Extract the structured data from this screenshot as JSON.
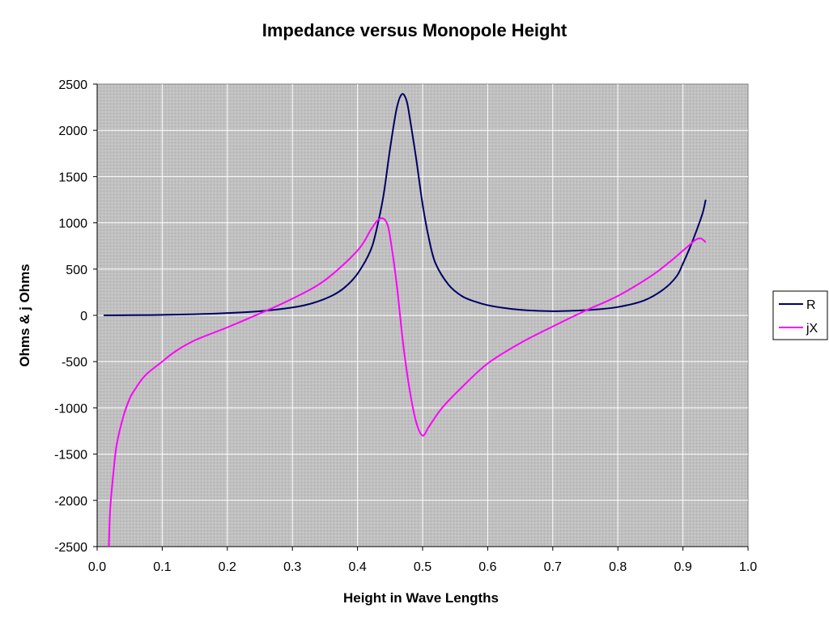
{
  "chart_data": {
    "type": "line",
    "title": "Impedance versus Monopole Height",
    "xlabel": "Height in Wave Lengths",
    "ylabel": "Ohms & j Ohms",
    "xlim": [
      0.0,
      1.0
    ],
    "ylim": [
      -2500,
      2500
    ],
    "xticks": [
      "0.0",
      "0.1",
      "0.2",
      "0.3",
      "0.4",
      "0.5",
      "0.6",
      "0.7",
      "0.8",
      "0.9",
      "1.0"
    ],
    "yticks": [
      "2500",
      "2000",
      "1500",
      "1000",
      "500",
      "0",
      "-500",
      "-1000",
      "-1500",
      "-2000",
      "-2500"
    ],
    "grid": true,
    "legend_position": "right",
    "plot_background": "#c0c0c0",
    "series": [
      {
        "name": "R",
        "color": "#000066",
        "x": [
          0.01,
          0.05,
          0.1,
          0.15,
          0.2,
          0.25,
          0.3,
          0.33,
          0.36,
          0.38,
          0.4,
          0.42,
          0.43,
          0.44,
          0.45,
          0.46,
          0.468,
          0.475,
          0.48,
          0.49,
          0.5,
          0.51,
          0.52,
          0.54,
          0.56,
          0.58,
          0.6,
          0.63,
          0.66,
          0.7,
          0.73,
          0.76,
          0.8,
          0.84,
          0.87,
          0.89,
          0.9,
          0.91,
          0.92,
          0.93,
          0.935
        ],
        "y": [
          0,
          2,
          5,
          12,
          25,
          45,
          85,
          130,
          210,
          300,
          450,
          700,
          950,
          1300,
          1800,
          2230,
          2390,
          2330,
          2150,
          1700,
          1200,
          820,
          560,
          330,
          210,
          150,
          110,
          75,
          55,
          45,
          50,
          60,
          90,
          160,
          280,
          420,
          560,
          720,
          900,
          1100,
          1250
        ]
      },
      {
        "name": "jX",
        "color": "#ff00ff",
        "x": [
          0.018,
          0.02,
          0.025,
          0.03,
          0.04,
          0.05,
          0.06,
          0.07,
          0.08,
          0.1,
          0.12,
          0.15,
          0.2,
          0.25,
          0.3,
          0.35,
          0.4,
          0.42,
          0.43,
          0.438,
          0.445,
          0.45,
          0.46,
          0.47,
          0.48,
          0.49,
          0.5,
          0.51,
          0.53,
          0.56,
          0.6,
          0.65,
          0.7,
          0.75,
          0.8,
          0.85,
          0.88,
          0.9,
          0.91,
          0.92,
          0.928,
          0.935
        ],
        "y": [
          -2500,
          -2100,
          -1700,
          -1400,
          -1100,
          -900,
          -780,
          -680,
          -610,
          -500,
          -390,
          -270,
          -130,
          20,
          180,
          380,
          700,
          920,
          1020,
          1050,
          1000,
          850,
          350,
          -300,
          -800,
          -1150,
          -1300,
          -1200,
          -1000,
          -780,
          -520,
          -300,
          -120,
          50,
          210,
          420,
          580,
          700,
          760,
          820,
          830,
          790
        ]
      }
    ]
  }
}
